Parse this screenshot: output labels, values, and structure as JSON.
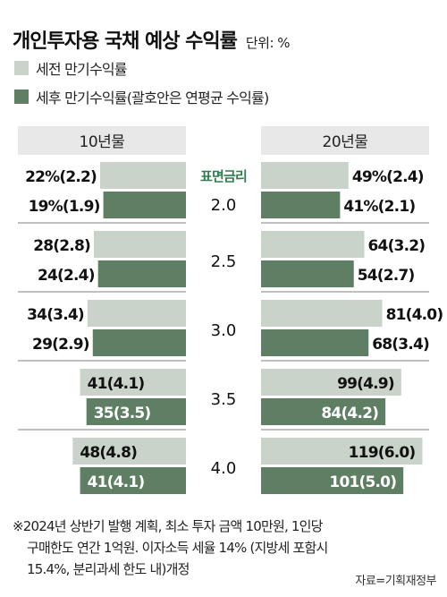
{
  "title": "개인투자용 국채 예상 수익률",
  "unit": "단위: %",
  "legend": [
    {
      "label": "세전 만기수익률",
      "color": "#c9d3c9"
    },
    {
      "label": "세후 만기수익률(괄호안은 연평균 수익률)",
      "color": "#5e7f63"
    }
  ],
  "colors": {
    "header_bg": "#e8e8e8",
    "divider": "#9a9a9a",
    "center_label": "#2e7d4f",
    "value_text": "#111111"
  },
  "chart_data": {
    "type": "bar",
    "title": "개인투자용 국채 예상 수익률",
    "unit": "단위: %",
    "center_header": "표면금리",
    "categories": [
      "2.0",
      "2.5",
      "3.0",
      "3.5",
      "4.0"
    ],
    "panels": [
      {
        "name": "10년물",
        "series": [
          {
            "name": "세전 만기수익률",
            "values": [
              22,
              28,
              34,
              41,
              48
            ],
            "annual": [
              2.2,
              2.8,
              3.4,
              4.1,
              4.8
            ]
          },
          {
            "name": "세후 만기수익률",
            "values": [
              19,
              24,
              29,
              35,
              41
            ],
            "annual": [
              1.9,
              2.4,
              2.9,
              3.5,
              4.1
            ]
          }
        ]
      },
      {
        "name": "20년물",
        "series": [
          {
            "name": "세전 만기수익률",
            "values": [
              49,
              64,
              81,
              99,
              119
            ],
            "annual": [
              2.4,
              3.2,
              4.0,
              4.9,
              6.0
            ]
          },
          {
            "name": "세후 만기수익률",
            "values": [
              41,
              54,
              68,
              84,
              101
            ],
            "annual": [
              2.1,
              2.7,
              3.4,
              4.2,
              5.0
            ]
          }
        ]
      }
    ],
    "row_labels": [
      {
        "pre": "22%(2.2)",
        "post": "19%(1.9)",
        "pre20": "49%(2.4)",
        "post20": "41%(2.1)"
      },
      {
        "pre": "28(2.8)",
        "post": "24(2.4)",
        "pre20": "64(3.2)",
        "post20": "54(2.7)"
      },
      {
        "pre": "34(3.4)",
        "post": "29(2.9)",
        "pre20": "81(4.0)",
        "post20": "68(3.4)"
      },
      {
        "pre": "41(4.1)",
        "post": "35(3.5)",
        "pre20": "99(4.9)",
        "post20": "84(4.2)"
      },
      {
        "pre": "48(4.8)",
        "post": "41(4.1)",
        "pre20": "119(6.0)",
        "post20": "101(5.0)"
      }
    ]
  },
  "footnote": [
    "※2024년 상반기 발행 계획, 최소 투자 금액 10만원, 1인당",
    "구매한도 연간 1억원. 이자소득 세율 14% (지방세 포함시",
    "15.4%, 분리과세 한도 내)개정"
  ],
  "source": "자료=기획재정부"
}
